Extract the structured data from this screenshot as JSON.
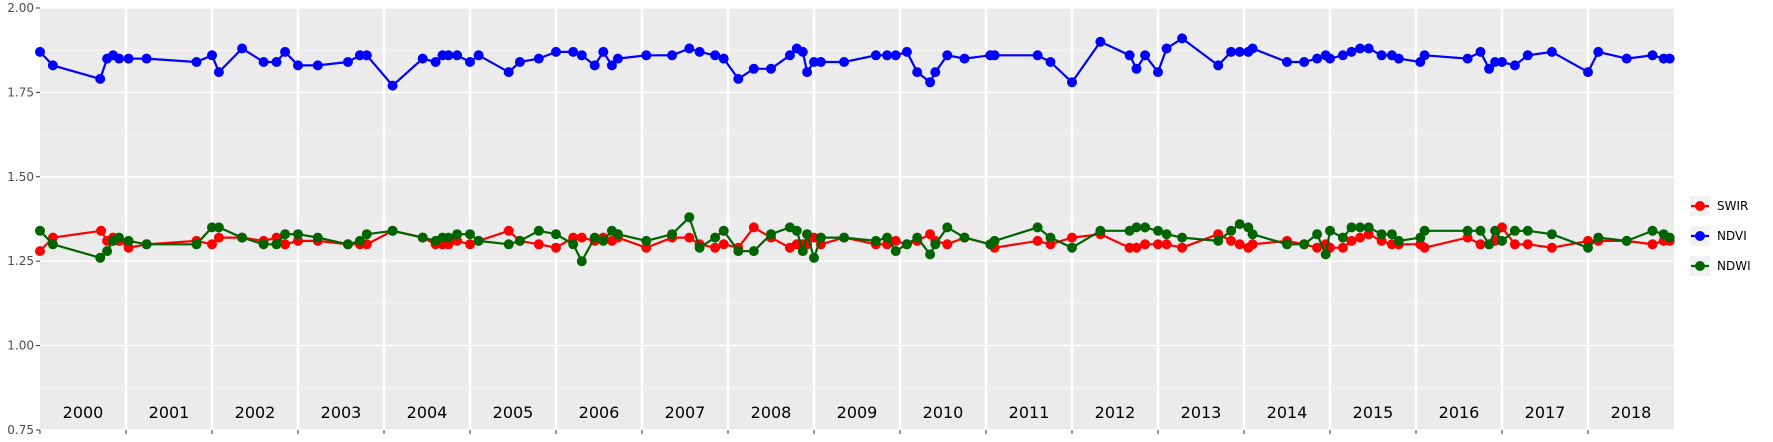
{
  "chart_data": {
    "type": "line",
    "title": "",
    "xlabel": "",
    "ylabel": "",
    "xlim": [
      2000.0,
      2019.0
    ],
    "ylim": [
      0.75,
      2.0
    ],
    "grid": true,
    "legend_position": "right",
    "y_ticks": [
      "0.75",
      "1.00",
      "1.25",
      "1.50",
      "1.75",
      "2.00"
    ],
    "y_tick_values": [
      0.75,
      1.0,
      1.25,
      1.5,
      1.75,
      2.0
    ],
    "year_labels": [
      "2000",
      "2001",
      "2002",
      "2003",
      "2004",
      "2005",
      "2006",
      "2007",
      "2008",
      "2009",
      "2010",
      "2011",
      "2012",
      "2013",
      "2014",
      "2015",
      "2016",
      "2017",
      "2018"
    ],
    "series": [
      {
        "name": "SWIR",
        "color": "#ff0000",
        "x": [
          2000.0,
          2000.15,
          2000.71,
          2000.78,
          2000.85,
          2000.92,
          2001.03,
          2001.24,
          2001.82,
          2002.0,
          2002.08,
          2002.35,
          2002.6,
          2002.75,
          2002.85,
          2003.0,
          2003.23,
          2003.58,
          2003.72,
          2003.8,
          2004.1,
          2004.45,
          2004.6,
          2004.68,
          2004.75,
          2004.85,
          2005.0,
          2005.1,
          2005.45,
          2005.58,
          2005.8,
          2006.0,
          2006.2,
          2006.3,
          2006.45,
          2006.55,
          2006.65,
          2006.72,
          2007.05,
          2007.35,
          2007.55,
          2007.67,
          2007.85,
          2007.95,
          2008.12,
          2008.3,
          2008.5,
          2008.72,
          2008.8,
          2008.87,
          2008.92,
          2009.0,
          2009.08,
          2009.35,
          2009.72,
          2009.85,
          2009.95,
          2010.08,
          2010.2,
          2010.35,
          2010.41,
          2010.55,
          2010.75,
          2011.05,
          2011.1,
          2011.6,
          2011.75,
          2012.0,
          2012.33,
          2012.67,
          2012.75,
          2012.85,
          2013.0,
          2013.1,
          2013.28,
          2013.7,
          2013.85,
          2013.95,
          2014.05,
          2014.1,
          2014.5,
          2014.7,
          2014.85,
          2014.95,
          2015.0,
          2015.15,
          2015.25,
          2015.35,
          2015.45,
          2015.6,
          2015.72,
          2015.8,
          2016.05,
          2016.1,
          2016.6,
          2016.75,
          2016.85,
          2016.92,
          2017.0,
          2017.15,
          2017.3,
          2017.58,
          2018.0,
          2018.12,
          2018.45,
          2018.75,
          2018.88,
          2018.95
        ],
        "values": [
          1.28,
          1.32,
          1.34,
          1.31,
          1.32,
          1.31,
          1.29,
          1.3,
          1.31,
          1.3,
          1.32,
          1.32,
          1.31,
          1.32,
          1.3,
          1.31,
          1.31,
          1.3,
          1.3,
          1.3,
          1.34,
          1.32,
          1.3,
          1.3,
          1.3,
          1.31,
          1.3,
          1.31,
          1.34,
          1.31,
          1.3,
          1.29,
          1.32,
          1.32,
          1.31,
          1.32,
          1.31,
          1.32,
          1.29,
          1.32,
          1.32,
          1.3,
          1.29,
          1.3,
          1.29,
          1.35,
          1.32,
          1.29,
          1.3,
          1.3,
          1.3,
          1.32,
          1.3,
          1.32,
          1.3,
          1.3,
          1.31,
          1.3,
          1.31,
          1.33,
          1.31,
          1.3,
          1.32,
          1.3,
          1.29,
          1.31,
          1.3,
          1.32,
          1.33,
          1.29,
          1.29,
          1.3,
          1.3,
          1.3,
          1.29,
          1.33,
          1.31,
          1.3,
          1.29,
          1.3,
          1.31,
          1.3,
          1.29,
          1.3,
          1.29,
          1.29,
          1.31,
          1.32,
          1.33,
          1.31,
          1.3,
          1.3,
          1.3,
          1.29,
          1.32,
          1.3,
          1.3,
          1.31,
          1.35,
          1.3,
          1.3,
          1.29,
          1.31,
          1.31,
          1.31,
          1.3,
          1.31,
          1.31
        ]
      },
      {
        "name": "NDVI",
        "color": "#0000ff",
        "x": [
          2000.0,
          2000.15,
          2000.7,
          2000.78,
          2000.85,
          2000.92,
          2001.03,
          2001.24,
          2001.82,
          2002.0,
          2002.08,
          2002.35,
          2002.6,
          2002.75,
          2002.85,
          2003.0,
          2003.23,
          2003.58,
          2003.72,
          2003.8,
          2004.1,
          2004.45,
          2004.6,
          2004.68,
          2004.75,
          2004.85,
          2005.0,
          2005.1,
          2005.45,
          2005.58,
          2005.8,
          2006.0,
          2006.2,
          2006.3,
          2006.45,
          2006.55,
          2006.65,
          2006.72,
          2007.05,
          2007.35,
          2007.55,
          2007.67,
          2007.85,
          2007.95,
          2008.12,
          2008.3,
          2008.5,
          2008.72,
          2008.8,
          2008.87,
          2008.92,
          2009.0,
          2009.08,
          2009.35,
          2009.72,
          2009.85,
          2009.95,
          2010.08,
          2010.2,
          2010.35,
          2010.41,
          2010.55,
          2010.75,
          2011.05,
          2011.1,
          2011.6,
          2011.75,
          2012.0,
          2012.33,
          2012.67,
          2012.75,
          2012.85,
          2013.0,
          2013.1,
          2013.28,
          2013.7,
          2013.85,
          2013.95,
          2014.05,
          2014.1,
          2014.5,
          2014.7,
          2014.85,
          2014.95,
          2015.0,
          2015.15,
          2015.25,
          2015.35,
          2015.45,
          2015.6,
          2015.72,
          2015.8,
          2016.05,
          2016.1,
          2016.6,
          2016.75,
          2016.85,
          2016.92,
          2017.0,
          2017.15,
          2017.3,
          2017.58,
          2018.0,
          2018.12,
          2018.45,
          2018.75,
          2018.88,
          2018.95
        ],
        "values": [
          1.87,
          1.83,
          1.79,
          1.85,
          1.86,
          1.85,
          1.85,
          1.85,
          1.84,
          1.86,
          1.81,
          1.88,
          1.84,
          1.84,
          1.87,
          1.83,
          1.83,
          1.84,
          1.86,
          1.86,
          1.77,
          1.85,
          1.84,
          1.86,
          1.86,
          1.86,
          1.84,
          1.86,
          1.81,
          1.84,
          1.85,
          1.87,
          1.87,
          1.86,
          1.83,
          1.87,
          1.83,
          1.85,
          1.86,
          1.86,
          1.88,
          1.87,
          1.86,
          1.85,
          1.79,
          1.82,
          1.82,
          1.86,
          1.88,
          1.87,
          1.81,
          1.84,
          1.84,
          1.84,
          1.86,
          1.86,
          1.86,
          1.87,
          1.81,
          1.78,
          1.81,
          1.86,
          1.85,
          1.86,
          1.86,
          1.86,
          1.84,
          1.78,
          1.9,
          1.86,
          1.82,
          1.86,
          1.81,
          1.88,
          1.91,
          1.83,
          1.87,
          1.87,
          1.87,
          1.88,
          1.84,
          1.84,
          1.85,
          1.86,
          1.85,
          1.86,
          1.87,
          1.88,
          1.88,
          1.86,
          1.86,
          1.85,
          1.84,
          1.86,
          1.85,
          1.87,
          1.82,
          1.84,
          1.84,
          1.83,
          1.86,
          1.87,
          1.81,
          1.87,
          1.85,
          1.86,
          1.85,
          1.85
        ]
      },
      {
        "name": "NDWI",
        "color": "#006400",
        "x": [
          2000.0,
          2000.15,
          2000.7,
          2000.78,
          2000.85,
          2000.92,
          2001.03,
          2001.24,
          2001.82,
          2002.0,
          2002.08,
          2002.35,
          2002.6,
          2002.75,
          2002.85,
          2003.0,
          2003.23,
          2003.58,
          2003.72,
          2003.8,
          2004.1,
          2004.45,
          2004.6,
          2004.68,
          2004.75,
          2004.85,
          2005.0,
          2005.1,
          2005.45,
          2005.58,
          2005.8,
          2006.0,
          2006.2,
          2006.3,
          2006.45,
          2006.55,
          2006.65,
          2006.72,
          2007.05,
          2007.35,
          2007.55,
          2007.67,
          2007.85,
          2007.95,
          2008.12,
          2008.3,
          2008.5,
          2008.72,
          2008.8,
          2008.87,
          2008.92,
          2009.0,
          2009.08,
          2009.35,
          2009.72,
          2009.85,
          2009.95,
          2010.08,
          2010.2,
          2010.35,
          2010.41,
          2010.55,
          2010.75,
          2011.05,
          2011.1,
          2011.6,
          2011.75,
          2012.0,
          2012.33,
          2012.67,
          2012.75,
          2012.85,
          2013.0,
          2013.1,
          2013.28,
          2013.7,
          2013.85,
          2013.95,
          2014.05,
          2014.1,
          2014.5,
          2014.7,
          2014.85,
          2014.95,
          2015.0,
          2015.15,
          2015.25,
          2015.35,
          2015.45,
          2015.6,
          2015.72,
          2015.8,
          2016.05,
          2016.1,
          2016.6,
          2016.75,
          2016.85,
          2016.92,
          2017.0,
          2017.15,
          2017.3,
          2017.58,
          2018.0,
          2018.12,
          2018.45,
          2018.75,
          2018.88,
          2018.95
        ],
        "values": [
          1.34,
          1.3,
          1.26,
          1.28,
          1.31,
          1.32,
          1.31,
          1.3,
          1.3,
          1.35,
          1.35,
          1.32,
          1.3,
          1.3,
          1.33,
          1.33,
          1.32,
          1.3,
          1.31,
          1.33,
          1.34,
          1.32,
          1.31,
          1.32,
          1.32,
          1.33,
          1.33,
          1.31,
          1.3,
          1.31,
          1.34,
          1.33,
          1.3,
          1.25,
          1.32,
          1.31,
          1.34,
          1.33,
          1.31,
          1.33,
          1.38,
          1.29,
          1.32,
          1.34,
          1.28,
          1.28,
          1.33,
          1.35,
          1.34,
          1.28,
          1.33,
          1.26,
          1.32,
          1.32,
          1.31,
          1.32,
          1.28,
          1.3,
          1.32,
          1.27,
          1.3,
          1.35,
          1.32,
          1.3,
          1.31,
          1.35,
          1.32,
          1.29,
          1.34,
          1.34,
          1.35,
          1.35,
          1.34,
          1.33,
          1.32,
          1.31,
          1.34,
          1.36,
          1.35,
          1.33,
          1.3,
          1.3,
          1.33,
          1.27,
          1.34,
          1.32,
          1.35,
          1.35,
          1.35,
          1.33,
          1.33,
          1.31,
          1.32,
          1.34,
          1.34,
          1.34,
          1.3,
          1.34,
          1.31,
          1.34,
          1.34,
          1.33,
          1.29,
          1.32,
          1.31,
          1.34,
          1.33,
          1.32
        ]
      }
    ]
  }
}
